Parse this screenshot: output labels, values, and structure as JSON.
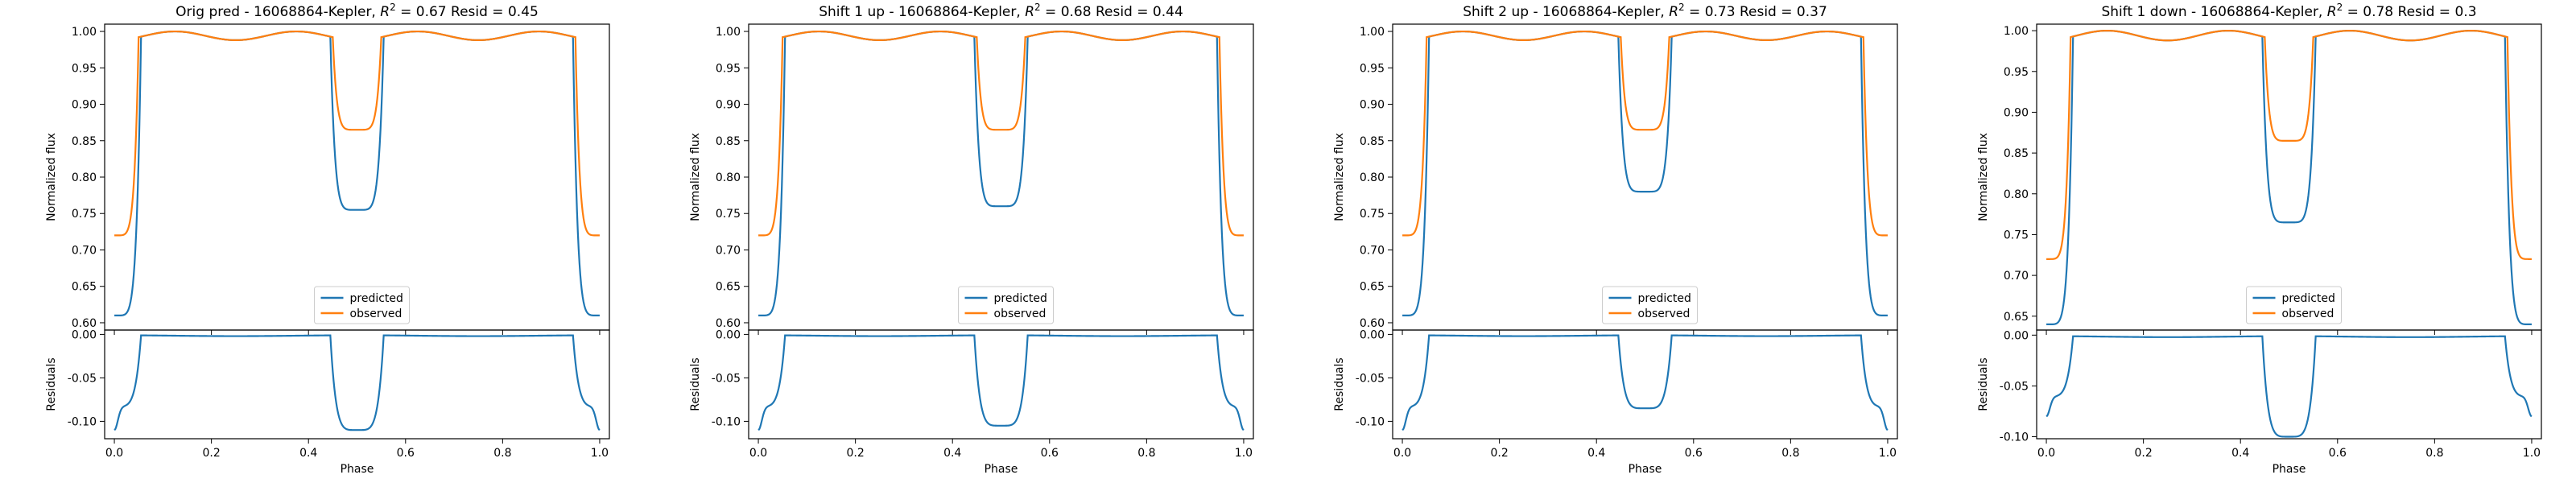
{
  "chart_data": [
    {
      "type": "line",
      "title": "Orig pred - 16068864-Kepler, R² = 0.67 Resid = 0.45",
      "title_prefix": "Orig pred - 16068864-Kepler, ",
      "title_r2": "0.67",
      "title_resid": "0.45",
      "top": {
        "ylabel": "Normalized flux",
        "ylim": [
          0.59,
          1.01
        ],
        "yticks": [
          "0.60",
          "0.65",
          "0.70",
          "0.75",
          "0.80",
          "0.85",
          "0.90",
          "0.95",
          "1.00"
        ],
        "predicted_params": {
          "eclipse_min": 0.755,
          "edge_min": 0.61
        },
        "observed_params": {
          "eclipse_min": 0.865,
          "edge_min": 0.72
        }
      },
      "bottom": {
        "ylabel": "Residuals",
        "xlabel": "Phase",
        "ylim": [
          -0.12,
          0.005
        ],
        "yticks": [
          "0.00",
          "-0.05",
          "-0.10"
        ],
        "resid_params": {
          "eclipse_min": -0.11,
          "edge_min": -0.11
        }
      },
      "xlim": [
        -0.02,
        1.02
      ],
      "xticks": [
        "0.0",
        "0.2",
        "0.4",
        "0.6",
        "0.8",
        "1.0"
      ],
      "legend": {
        "position": "lower-center",
        "entries": [
          "predicted",
          "observed"
        ]
      }
    },
    {
      "type": "line",
      "title": "Shift 1 up - 16068864-Kepler, R² = 0.68 Resid = 0.44",
      "title_prefix": "Shift 1 up - 16068864-Kepler, ",
      "title_r2": "0.68",
      "title_resid": "0.44",
      "top": {
        "ylabel": "Normalized flux",
        "ylim": [
          0.59,
          1.01
        ],
        "yticks": [
          "0.60",
          "0.65",
          "0.70",
          "0.75",
          "0.80",
          "0.85",
          "0.90",
          "0.95",
          "1.00"
        ],
        "predicted_params": {
          "eclipse_min": 0.76,
          "edge_min": 0.61
        },
        "observed_params": {
          "eclipse_min": 0.865,
          "edge_min": 0.72
        }
      },
      "bottom": {
        "ylabel": "Residuals",
        "xlabel": "Phase",
        "ylim": [
          -0.12,
          0.005
        ],
        "yticks": [
          "0.00",
          "-0.05",
          "-0.10"
        ],
        "resid_params": {
          "eclipse_min": -0.105,
          "edge_min": -0.11
        }
      },
      "xlim": [
        -0.02,
        1.02
      ],
      "xticks": [
        "0.0",
        "0.2",
        "0.4",
        "0.6",
        "0.8",
        "1.0"
      ],
      "legend": {
        "position": "lower-center",
        "entries": [
          "predicted",
          "observed"
        ]
      }
    },
    {
      "type": "line",
      "title": "Shift 2 up - 16068864-Kepler, R² = 0.73 Resid = 0.37",
      "title_prefix": "Shift 2 up - 16068864-Kepler, ",
      "title_r2": "0.73",
      "title_resid": "0.37",
      "top": {
        "ylabel": "Normalized flux",
        "ylim": [
          0.59,
          1.01
        ],
        "yticks": [
          "0.60",
          "0.65",
          "0.70",
          "0.75",
          "0.80",
          "0.85",
          "0.90",
          "0.95",
          "1.00"
        ],
        "predicted_params": {
          "eclipse_min": 0.78,
          "edge_min": 0.61
        },
        "observed_params": {
          "eclipse_min": 0.865,
          "edge_min": 0.72
        }
      },
      "bottom": {
        "ylabel": "Residuals",
        "xlabel": "Phase",
        "ylim": [
          -0.12,
          0.005
        ],
        "yticks": [
          "0.00",
          "-0.05",
          "-0.10"
        ],
        "resid_params": {
          "eclipse_min": -0.085,
          "edge_min": -0.11
        }
      },
      "xlim": [
        -0.02,
        1.02
      ],
      "xticks": [
        "0.0",
        "0.2",
        "0.4",
        "0.6",
        "0.8",
        "1.0"
      ],
      "legend": {
        "position": "lower-center",
        "entries": [
          "predicted",
          "observed"
        ]
      }
    },
    {
      "type": "line",
      "title": "Shift 1 down - 16068864-Kepler, R² = 0.78 Resid = 0.3",
      "title_prefix": "Shift 1 down - 16068864-Kepler, ",
      "title_r2": "0.78",
      "title_resid": "0.3",
      "top": {
        "ylabel": "Normalized flux",
        "ylim": [
          0.633,
          1.008
        ],
        "yticks": [
          "0.65",
          "0.70",
          "0.75",
          "0.80",
          "0.85",
          "0.90",
          "0.95",
          "1.00"
        ],
        "predicted_params": {
          "eclipse_min": 0.765,
          "edge_min": 0.64
        },
        "observed_params": {
          "eclipse_min": 0.865,
          "edge_min": 0.72
        }
      },
      "bottom": {
        "ylabel": "Residuals",
        "xlabel": "Phase",
        "ylim": [
          -0.102,
          0.005
        ],
        "yticks": [
          "0.00",
          "-0.05",
          "-0.10"
        ],
        "resid_params": {
          "eclipse_min": -0.1,
          "edge_min": -0.08
        }
      },
      "xlim": [
        -0.02,
        1.02
      ],
      "xticks": [
        "0.0",
        "0.2",
        "0.4",
        "0.6",
        "0.8",
        "1.0"
      ],
      "legend": {
        "position": "lower-center",
        "entries": [
          "predicted",
          "observed"
        ]
      }
    }
  ],
  "colors": {
    "predicted": "#1f77b4",
    "observed": "#ff7f0e",
    "axis": "#000000"
  }
}
